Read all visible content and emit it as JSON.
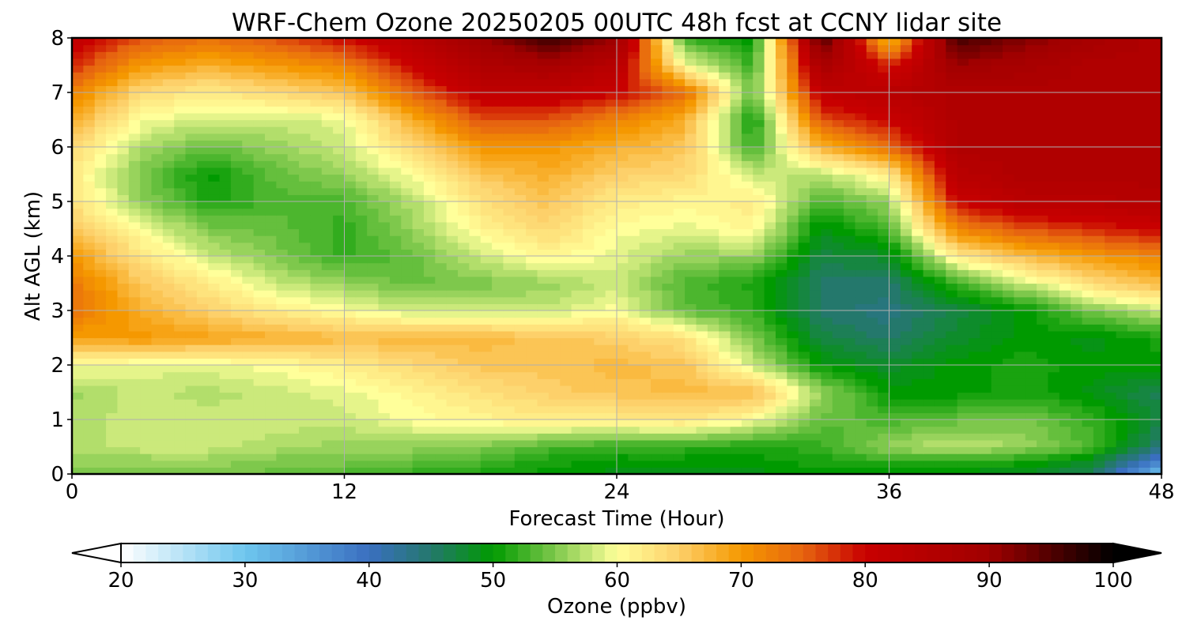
{
  "chart_data": {
    "type": "heatmap",
    "title": "WRF-Chem Ozone  20250205 00UTC 48h fcst at CCNY lidar site",
    "xlabel": "Forecast Time (Hour)",
    "ylabel": "Alt AGL (km)",
    "xlim": [
      0,
      48
    ],
    "ylim": [
      0,
      8
    ],
    "xticks": [
      0,
      12,
      24,
      36,
      48
    ],
    "yticks": [
      0,
      1,
      2,
      3,
      4,
      5,
      6,
      7,
      8
    ],
    "grid": true,
    "x": [
      0,
      3,
      6,
      9,
      12,
      15,
      18,
      21,
      24,
      27,
      30,
      33,
      36,
      39,
      42,
      45,
      48
    ],
    "y": [
      0,
      0.25,
      0.5,
      1,
      1.5,
      2,
      2.5,
      3,
      3.5,
      4,
      4.5,
      5,
      5.5,
      6,
      6.5,
      7,
      7.5,
      8
    ],
    "z": [
      [
        55,
        55,
        55,
        54,
        53,
        52,
        51,
        50,
        49,
        49,
        49,
        50,
        50,
        49,
        48,
        46,
        30
      ],
      [
        56,
        56,
        56,
        55,
        55,
        54,
        53,
        51,
        50,
        50,
        50,
        51,
        52,
        52,
        51,
        48,
        38
      ],
      [
        57,
        58,
        58,
        57,
        56,
        56,
        55,
        53,
        52,
        52,
        51,
        52,
        56,
        58,
        56,
        53,
        44
      ],
      [
        57,
        58,
        58,
        58,
        58,
        60,
        61,
        62,
        62,
        63,
        60,
        54,
        53,
        54,
        55,
        52,
        47
      ],
      [
        56,
        58,
        57,
        58,
        59,
        61,
        63,
        65,
        66,
        67,
        67,
        56,
        50,
        50,
        51,
        49,
        46
      ],
      [
        60,
        59,
        59,
        60,
        62,
        64,
        66,
        66,
        67,
        66,
        58,
        50,
        48,
        50,
        51,
        50,
        50
      ],
      [
        69,
        70,
        69,
        68,
        67,
        67,
        67,
        66,
        65,
        63,
        55,
        47,
        45,
        48,
        50,
        49,
        51
      ],
      [
        74,
        68,
        65,
        62,
        60,
        58,
        58,
        58,
        60,
        54,
        52,
        45,
        44,
        47,
        50,
        55,
        58
      ],
      [
        73,
        66,
        62,
        58,
        56,
        54,
        55,
        56,
        58,
        53,
        51,
        45,
        45,
        52,
        58,
        64,
        67
      ],
      [
        70,
        63,
        58,
        55,
        52,
        54,
        58,
        61,
        59,
        56,
        56,
        47,
        48,
        62,
        67,
        70,
        72
      ],
      [
        66,
        60,
        55,
        54,
        52,
        56,
        61,
        64,
        60,
        59,
        61,
        49,
        53,
        72,
        76,
        78,
        80
      ],
      [
        63,
        56,
        51,
        53,
        53,
        57,
        63,
        66,
        62,
        61,
        62,
        53,
        56,
        80,
        84,
        84,
        85
      ],
      [
        62,
        55,
        50,
        54,
        56,
        60,
        66,
        68,
        65,
        64,
        58,
        57,
        62,
        84,
        86,
        86,
        86
      ],
      [
        64,
        57,
        54,
        56,
        58,
        64,
        70,
        70,
        68,
        66,
        52,
        68,
        74,
        86,
        86,
        86,
        86
      ],
      [
        68,
        60,
        58,
        58,
        59,
        68,
        76,
        76,
        72,
        68,
        50,
        76,
        80,
        86,
        86,
        86,
        86
      ],
      [
        72,
        64,
        62,
        64,
        66,
        75,
        82,
        82,
        80,
        74,
        54,
        82,
        84,
        86,
        86,
        86,
        86
      ],
      [
        78,
        70,
        68,
        70,
        72,
        80,
        86,
        88,
        84,
        60,
        52,
        88,
        78,
        90,
        88,
        86,
        86
      ],
      [
        82,
        76,
        74,
        76,
        80,
        84,
        90,
        96,
        90,
        52,
        50,
        96,
        66,
        96,
        92,
        88,
        86
      ]
    ],
    "colorbar": {
      "label": "Ozone  (ppbv)",
      "min": 20,
      "max": 100,
      "ticks": [
        20,
        30,
        40,
        50,
        60,
        70,
        80,
        90,
        100
      ],
      "extend": "both",
      "stops": [
        {
          "v": 20,
          "c": "#ffffff"
        },
        {
          "v": 30,
          "c": "#6ec6ee"
        },
        {
          "v": 40,
          "c": "#3a6fc0"
        },
        {
          "v": 45,
          "c": "#24786c"
        },
        {
          "v": 50,
          "c": "#009a00"
        },
        {
          "v": 55,
          "c": "#7ec84c"
        },
        {
          "v": 60,
          "c": "#ffff9a"
        },
        {
          "v": 65,
          "c": "#fdd06a"
        },
        {
          "v": 70,
          "c": "#f59800"
        },
        {
          "v": 75,
          "c": "#e66410"
        },
        {
          "v": 80,
          "c": "#c80000"
        },
        {
          "v": 90,
          "c": "#a00000"
        },
        {
          "v": 100,
          "c": "#000000"
        }
      ]
    }
  }
}
